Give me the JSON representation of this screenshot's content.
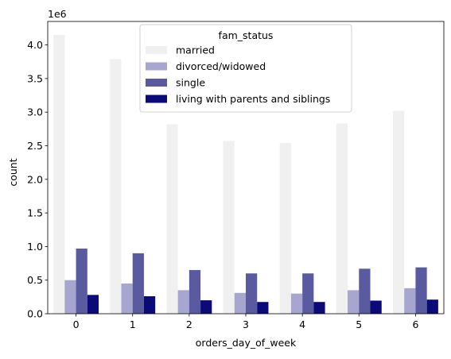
{
  "chart_data": {
    "type": "bar",
    "xlabel": "orders_day_of_week",
    "ylabel": "count",
    "offset_text": "1e6",
    "scale": 1000000,
    "ylim": [
      0,
      4350000
    ],
    "yticks": [
      0,
      500000,
      1000000,
      1500000,
      2000000,
      2500000,
      3000000,
      3500000,
      4000000
    ],
    "ytick_labels": [
      "0.0",
      "0.5",
      "1.0",
      "1.5",
      "2.0",
      "2.5",
      "3.0",
      "3.5",
      "4.0"
    ],
    "categories": [
      "0",
      "1",
      "2",
      "3",
      "4",
      "5",
      "6"
    ],
    "grid": false,
    "legend": {
      "title": "fam_status",
      "placement": "top-center"
    },
    "series": [
      {
        "name": "married",
        "color": "#f0f0f0",
        "values": [
          4150000,
          3790000,
          2820000,
          2570000,
          2540000,
          2830000,
          3020000
        ]
      },
      {
        "name": "divorced/widowed",
        "color": "#a6a6d1",
        "values": [
          500000,
          450000,
          350000,
          310000,
          300000,
          350000,
          380000
        ]
      },
      {
        "name": "single",
        "color": "#5a5aa0",
        "values": [
          970000,
          900000,
          650000,
          600000,
          600000,
          670000,
          690000
        ]
      },
      {
        "name": "living with parents and siblings",
        "color": "#0a0a78",
        "values": [
          280000,
          260000,
          200000,
          175000,
          175000,
          195000,
          210000
        ]
      }
    ]
  }
}
